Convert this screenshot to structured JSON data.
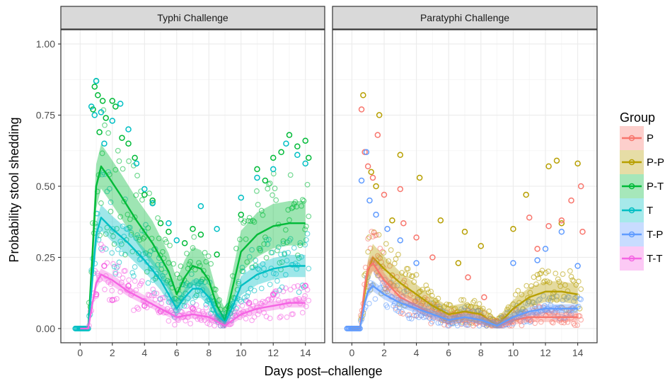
{
  "chart_data": {
    "type": "scatter",
    "xlabel": "Days post–challenge",
    "ylabel": "Probability stool shedding",
    "xlim": [
      -1.2,
      15.2
    ],
    "ylim": [
      -0.05,
      1.05
    ],
    "x_ticks": [
      0,
      2,
      4,
      6,
      8,
      10,
      12,
      14
    ],
    "y_ticks": [
      0,
      0.25,
      0.5,
      0.75,
      1.0
    ],
    "y_tick_labels": [
      "0.00",
      "0.25",
      "0.50",
      "0.75",
      "1.00"
    ],
    "grid": true,
    "legend": {
      "title": "Group",
      "placement": "right",
      "entries": [
        "P",
        "P-P",
        "P-T",
        "T",
        "T-P",
        "T-T"
      ]
    },
    "colors": {
      "P": "#F8766D",
      "P-P": "#B79F00",
      "P-T": "#00BA38",
      "T": "#00BFC4",
      "T-P": "#619CFF",
      "T-T": "#F564E3"
    },
    "panels": [
      {
        "title": "Typhi Challenge",
        "series": [
          {
            "name": "P-T",
            "smooth": [
              [
                0,
                0.0
              ],
              [
                0.5,
                0.0
              ],
              [
                0.8,
                0.3
              ],
              [
                1.0,
                0.5
              ],
              [
                1.3,
                0.57
              ],
              [
                1.8,
                0.53
              ],
              [
                2.5,
                0.47
              ],
              [
                3.5,
                0.38
              ],
              [
                4.5,
                0.3
              ],
              [
                5.5,
                0.2
              ],
              [
                6.0,
                0.12
              ],
              [
                6.5,
                0.18
              ],
              [
                7.0,
                0.22
              ],
              [
                7.5,
                0.21
              ],
              [
                8.0,
                0.17
              ],
              [
                8.5,
                0.08
              ],
              [
                9.0,
                0.03
              ],
              [
                9.5,
                0.15
              ],
              [
                10.0,
                0.27
              ],
              [
                11.0,
                0.33
              ],
              [
                12.0,
                0.36
              ],
              [
                13.0,
                0.37
              ],
              [
                14.0,
                0.37
              ]
            ],
            "band_halfwidth": 0.06
          },
          {
            "name": "T",
            "smooth": [
              [
                0,
                0.0
              ],
              [
                0.5,
                0.0
              ],
              [
                0.8,
                0.2
              ],
              [
                1.0,
                0.33
              ],
              [
                1.3,
                0.39
              ],
              [
                2.0,
                0.35
              ],
              [
                3.0,
                0.3
              ],
              [
                4.0,
                0.24
              ],
              [
                5.0,
                0.17
              ],
              [
                5.5,
                0.12
              ],
              [
                6.0,
                0.07
              ],
              [
                6.5,
                0.11
              ],
              [
                7.0,
                0.14
              ],
              [
                7.5,
                0.14
              ],
              [
                8.0,
                0.11
              ],
              [
                8.5,
                0.05
              ],
              [
                9.0,
                0.02
              ],
              [
                9.5,
                0.08
              ],
              [
                10.0,
                0.15
              ],
              [
                11.0,
                0.19
              ],
              [
                12.0,
                0.21
              ],
              [
                13.0,
                0.22
              ],
              [
                14.0,
                0.22
              ]
            ],
            "band_halfwidth": 0.035
          },
          {
            "name": "T-T",
            "smooth": [
              [
                0,
                0.0
              ],
              [
                0.5,
                0.0
              ],
              [
                0.8,
                0.1
              ],
              [
                1.0,
                0.16
              ],
              [
                1.3,
                0.19
              ],
              [
                2.0,
                0.17
              ],
              [
                3.0,
                0.13
              ],
              [
                4.0,
                0.1
              ],
              [
                5.0,
                0.07
              ],
              [
                6.0,
                0.04
              ],
              [
                7.0,
                0.05
              ],
              [
                8.0,
                0.04
              ],
              [
                9.0,
                0.01
              ],
              [
                10.0,
                0.05
              ],
              [
                11.0,
                0.07
              ],
              [
                12.0,
                0.08
              ],
              [
                13.0,
                0.09
              ],
              [
                14.0,
                0.09
              ]
            ],
            "band_halfwidth": 0.02
          }
        ],
        "scatter": [
          {
            "name": "P-T",
            "points": [
              [
                0.8,
                0.77
              ],
              [
                0.9,
                0.85
              ],
              [
                1.0,
                0.87
              ],
              [
                1.1,
                0.82
              ],
              [
                1.2,
                0.69
              ],
              [
                1.4,
                0.8
              ],
              [
                1.6,
                0.74
              ],
              [
                2.0,
                0.8
              ],
              [
                2.2,
                0.78
              ],
              [
                2.6,
                0.67
              ],
              [
                3.0,
                0.65
              ],
              [
                3.4,
                0.6
              ],
              [
                4.0,
                0.47
              ],
              [
                4.5,
                0.45
              ],
              [
                5.0,
                0.37
              ],
              [
                5.5,
                0.34
              ],
              [
                6.5,
                0.3
              ],
              [
                7.0,
                0.35
              ],
              [
                7.5,
                0.33
              ],
              [
                8.5,
                0.26
              ],
              [
                10.0,
                0.4
              ],
              [
                11.0,
                0.56
              ],
              [
                11.5,
                0.52
              ],
              [
                12.0,
                0.6
              ],
              [
                12.5,
                0.62
              ],
              [
                13.0,
                0.68
              ],
              [
                13.5,
                0.64
              ],
              [
                14.0,
                0.66
              ],
              [
                14.2,
                0.6
              ]
            ]
          },
          {
            "name": "T",
            "points": [
              [
                0.7,
                0.78
              ],
              [
                0.9,
                0.75
              ],
              [
                1.0,
                0.87
              ],
              [
                1.3,
                0.76
              ],
              [
                1.5,
                0.65
              ],
              [
                2.0,
                0.73
              ],
              [
                2.5,
                0.79
              ],
              [
                3.0,
                0.7
              ],
              [
                3.5,
                0.58
              ],
              [
                4.0,
                0.49
              ],
              [
                4.5,
                0.44
              ],
              [
                5.5,
                0.37
              ],
              [
                6.0,
                0.31
              ],
              [
                7.5,
                0.43
              ],
              [
                8.5,
                0.35
              ],
              [
                10.0,
                0.46
              ],
              [
                11.0,
                0.53
              ],
              [
                12.0,
                0.56
              ],
              [
                12.8,
                0.65
              ],
              [
                13.5,
                0.61
              ],
              [
                14.0,
                0.58
              ]
            ]
          },
          {
            "name": "T-T",
            "points": [
              [
                1.0,
                0.12
              ],
              [
                1.5,
                0.22
              ],
              [
                2.0,
                0.1
              ],
              [
                3.0,
                0.15
              ],
              [
                4.0,
                0.08
              ],
              [
                5.0,
                0.06
              ],
              [
                7.0,
                0.07
              ],
              [
                10.5,
                0.09
              ],
              [
                12.0,
                0.12
              ],
              [
                14.0,
                0.15
              ]
            ]
          }
        ]
      },
      {
        "title": "Paratyphi Challenge",
        "series": [
          {
            "name": "P-P",
            "smooth": [
              [
                0,
                0.0
              ],
              [
                0.5,
                0.0
              ],
              [
                0.8,
                0.13
              ],
              [
                1.0,
                0.2
              ],
              [
                1.3,
                0.25
              ],
              [
                2.0,
                0.21
              ],
              [
                3.0,
                0.16
              ],
              [
                4.0,
                0.12
              ],
              [
                5.0,
                0.08
              ],
              [
                6.0,
                0.05
              ],
              [
                7.0,
                0.06
              ],
              [
                8.0,
                0.05
              ],
              [
                9.0,
                0.01
              ],
              [
                10.0,
                0.07
              ],
              [
                11.0,
                0.11
              ],
              [
                12.0,
                0.13
              ],
              [
                13.0,
                0.13
              ],
              [
                14.0,
                0.12
              ]
            ],
            "band_halfwidth": 0.04
          },
          {
            "name": "P",
            "smooth": [
              [
                0,
                0.0
              ],
              [
                0.5,
                0.0
              ],
              [
                0.8,
                0.15
              ],
              [
                1.0,
                0.21
              ],
              [
                1.3,
                0.23
              ],
              [
                2.0,
                0.17
              ],
              [
                3.0,
                0.11
              ],
              [
                4.0,
                0.08
              ],
              [
                5.0,
                0.05
              ],
              [
                6.0,
                0.03
              ],
              [
                7.0,
                0.04
              ],
              [
                8.0,
                0.03
              ],
              [
                9.0,
                0.01
              ],
              [
                10.0,
                0.03
              ],
              [
                11.0,
                0.04
              ],
              [
                12.0,
                0.04
              ],
              [
                13.0,
                0.04
              ],
              [
                14.0,
                0.04
              ]
            ],
            "band_halfwidth": 0.025
          },
          {
            "name": "T-P",
            "smooth": [
              [
                0,
                0.0
              ],
              [
                0.5,
                0.0
              ],
              [
                0.8,
                0.09
              ],
              [
                1.0,
                0.13
              ],
              [
                1.3,
                0.15
              ],
              [
                2.0,
                0.12
              ],
              [
                3.0,
                0.09
              ],
              [
                4.0,
                0.07
              ],
              [
                5.0,
                0.05
              ],
              [
                6.0,
                0.03
              ],
              [
                7.0,
                0.04
              ],
              [
                8.0,
                0.03
              ],
              [
                9.0,
                0.01
              ],
              [
                10.0,
                0.04
              ],
              [
                11.0,
                0.06
              ],
              [
                12.0,
                0.07
              ],
              [
                13.0,
                0.07
              ],
              [
                14.0,
                0.07
              ]
            ],
            "band_halfwidth": 0.02
          }
        ],
        "scatter": [
          {
            "name": "P-P",
            "points": [
              [
                0.7,
                0.82
              ],
              [
                1.2,
                0.55
              ],
              [
                1.5,
                0.5
              ],
              [
                1.7,
                0.75
              ],
              [
                2.5,
                0.38
              ],
              [
                3.0,
                0.61
              ],
              [
                4.2,
                0.53
              ],
              [
                5.5,
                0.38
              ],
              [
                6.6,
                0.23
              ],
              [
                7.0,
                0.34
              ],
              [
                8.0,
                0.29
              ],
              [
                10.0,
                0.35
              ],
              [
                10.8,
                0.47
              ],
              [
                12.2,
                0.57
              ],
              [
                12.7,
                0.59
              ],
              [
                14.0,
                0.58
              ],
              [
                13.0,
                0.37
              ]
            ]
          },
          {
            "name": "P",
            "points": [
              [
                0.6,
                0.77
              ],
              [
                0.8,
                0.62
              ],
              [
                1.0,
                0.57
              ],
              [
                1.3,
                0.53
              ],
              [
                1.6,
                0.68
              ],
              [
                2.0,
                0.47
              ],
              [
                3.0,
                0.49
              ],
              [
                3.2,
                0.37
              ],
              [
                4.0,
                0.32
              ],
              [
                5.0,
                0.25
              ],
              [
                7.2,
                0.18
              ],
              [
                8.2,
                0.11
              ],
              [
                11.0,
                0.39
              ],
              [
                11.5,
                0.28
              ],
              [
                12.2,
                0.36
              ],
              [
                13.0,
                0.38
              ],
              [
                13.6,
                0.45
              ],
              [
                14.2,
                0.5
              ],
              [
                14.3,
                0.34
              ]
            ]
          },
          {
            "name": "T-P",
            "points": [
              [
                0.6,
                0.52
              ],
              [
                0.9,
                0.62
              ],
              [
                1.1,
                0.45
              ],
              [
                1.5,
                0.4
              ],
              [
                2.2,
                0.35
              ],
              [
                3.0,
                0.31
              ],
              [
                4.0,
                0.23
              ],
              [
                10.0,
                0.23
              ],
              [
                11.5,
                0.24
              ],
              [
                12.0,
                0.28
              ],
              [
                13.0,
                0.34
              ],
              [
                14.0,
                0.22
              ]
            ]
          }
        ]
      }
    ]
  }
}
